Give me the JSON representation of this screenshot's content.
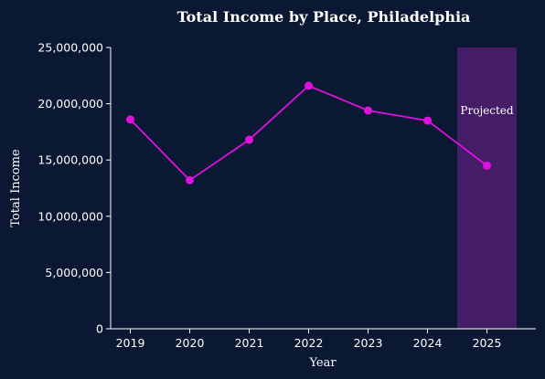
{
  "chart_data": {
    "type": "line",
    "title": "Total Income by Place, Philadelphia",
    "xlabel": "Year",
    "ylabel": "Total Income",
    "x": [
      "2019",
      "2020",
      "2021",
      "2022",
      "2023",
      "2024",
      "2025"
    ],
    "series": [
      {
        "values": [
          18600000,
          13200000,
          16800000,
          21600000,
          19400000,
          18500000,
          14500000
        ],
        "color": "#e010e0"
      }
    ],
    "ylim": [
      0,
      25000000
    ],
    "yticks": [
      0,
      5000000,
      10000000,
      15000000,
      20000000,
      25000000
    ],
    "ytick_labels": [
      "0",
      "5,000,000",
      "10,000,000",
      "15,000,000",
      "20,000,000",
      "25,000,000"
    ],
    "grid": false,
    "projection": {
      "label": "Projected",
      "x_start": "2024.5",
      "x_end": "2025.5",
      "color": "#5a1e78"
    },
    "colors": {
      "background": "#0b1833",
      "axes": "#ffffff",
      "text": "#ffffff"
    }
  }
}
